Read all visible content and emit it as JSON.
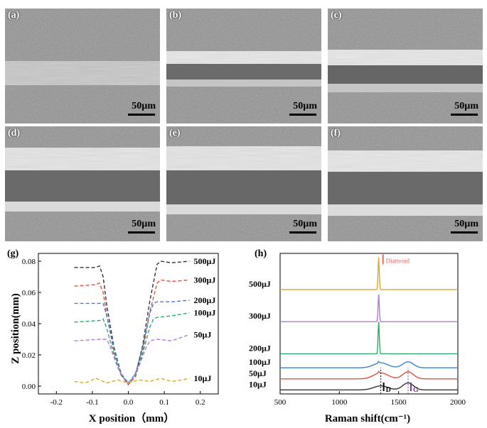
{
  "sem_panels": [
    {
      "label": "(a)",
      "scale": "50µm"
    },
    {
      "label": "(b)",
      "scale": "50µm"
    },
    {
      "label": "(c)",
      "scale": "50µm"
    },
    {
      "label": "(d)",
      "scale": "50µm"
    },
    {
      "label": "(e)",
      "scale": "50µm"
    },
    {
      "label": "(f)",
      "scale": "50µm"
    }
  ],
  "chart_data": [
    {
      "panel_label": "(g)",
      "type": "line",
      "xlabel": "X position（mm）",
      "ylabel": "Z position(mm)",
      "xlim": [
        -0.25,
        0.25
      ],
      "ylim": [
        -0.005,
        0.085
      ],
      "xticks": [
        "-0.2",
        "-0.1",
        "0.0",
        "0.1",
        "0.2"
      ],
      "yticks": [
        "0.00",
        "0.02",
        "0.04",
        "0.06",
        "0.08"
      ],
      "line_style": "dashed",
      "grid": false,
      "series": [
        {
          "name": "500μJ",
          "color": "#333333",
          "x": [
            -0.15,
            -0.09,
            -0.08,
            -0.07,
            -0.06,
            -0.04,
            -0.02,
            0.0,
            0.02,
            0.04,
            0.06,
            0.08,
            0.09,
            0.12,
            0.17
          ],
          "y": [
            0.076,
            0.076,
            0.077,
            0.07,
            0.052,
            0.025,
            0.008,
            0.001,
            0.007,
            0.026,
            0.055,
            0.078,
            0.08,
            0.079,
            0.08
          ]
        },
        {
          "name": "300μJ",
          "color": "#e0503e",
          "x": [
            -0.15,
            -0.09,
            -0.08,
            -0.07,
            -0.06,
            -0.04,
            -0.02,
            0.0,
            0.02,
            0.04,
            0.06,
            0.08,
            0.09,
            0.12,
            0.17
          ],
          "y": [
            0.064,
            0.065,
            0.066,
            0.06,
            0.046,
            0.022,
            0.007,
            0.001,
            0.006,
            0.022,
            0.048,
            0.066,
            0.068,
            0.067,
            0.068
          ]
        },
        {
          "name": "200μJ",
          "color": "#3a7fd5",
          "x": [
            -0.15,
            -0.08,
            -0.07,
            -0.06,
            -0.04,
            -0.02,
            0.0,
            0.02,
            0.04,
            0.06,
            0.07,
            0.08,
            0.12,
            0.17
          ],
          "y": [
            0.053,
            0.053,
            0.053,
            0.045,
            0.024,
            0.008,
            0.002,
            0.008,
            0.025,
            0.047,
            0.053,
            0.054,
            0.054,
            0.055
          ]
        },
        {
          "name": "100μJ",
          "color": "#2eaa6c",
          "x": [
            -0.15,
            -0.08,
            -0.07,
            -0.06,
            -0.04,
            -0.02,
            0.0,
            0.02,
            0.04,
            0.06,
            0.07,
            0.08,
            0.12,
            0.17
          ],
          "y": [
            0.041,
            0.042,
            0.043,
            0.037,
            0.02,
            0.007,
            0.002,
            0.007,
            0.021,
            0.038,
            0.043,
            0.044,
            0.045,
            0.047
          ]
        },
        {
          "name": "50μJ",
          "color": "#b07ad8",
          "x": [
            -0.15,
            -0.08,
            -0.06,
            -0.05,
            -0.03,
            -0.01,
            0.0,
            0.01,
            0.03,
            0.05,
            0.06,
            0.08,
            0.12,
            0.17
          ],
          "y": [
            0.029,
            0.03,
            0.03,
            0.025,
            0.012,
            0.004,
            0.002,
            0.004,
            0.013,
            0.025,
            0.029,
            0.03,
            0.029,
            0.033
          ]
        },
        {
          "name": "10μJ",
          "color": "#d9a825",
          "x": [
            -0.15,
            -0.12,
            -0.09,
            -0.06,
            -0.03,
            0.0,
            0.03,
            0.06,
            0.09,
            0.12,
            0.15,
            0.17
          ],
          "y": [
            0.003,
            0.002,
            0.005,
            0.002,
            0.004,
            0.002,
            0.004,
            0.003,
            0.005,
            0.003,
            0.004,
            0.005
          ]
        }
      ]
    },
    {
      "panel_label": "(h)",
      "type": "line",
      "xlabel": "Raman shift(cm⁻¹)",
      "ylabel": "",
      "xlim": [
        500,
        2000
      ],
      "xticks": [
        "500",
        "1000",
        "1500",
        "2000"
      ],
      "grid": false,
      "annotations": {
        "diamond": "Diamond",
        "d": "D",
        "g": "G"
      },
      "peak_positions": {
        "diamond": 1332,
        "d": 1350,
        "g": 1580
      },
      "series": [
        {
          "name": "500μJ",
          "color": "#d9a825",
          "offset": 5.2,
          "diamond_peak": 1.6,
          "d_peak": 0.0,
          "g_peak": 0.0
        },
        {
          "name": "300μJ",
          "color": "#b07ad8",
          "offset": 3.6,
          "diamond_peak": 1.35,
          "d_peak": 0.0,
          "g_peak": 0.0
        },
        {
          "name": "200μJ",
          "color": "#2eaa6c",
          "offset": 2.0,
          "diamond_peak": 1.6,
          "d_peak": 0.0,
          "g_peak": 0.0
        },
        {
          "name": "100μJ",
          "color": "#3a7fd5",
          "offset": 1.3,
          "diamond_peak": 0.08,
          "d_peak": 0.25,
          "g_peak": 0.3
        },
        {
          "name": "50μJ",
          "color": "#e0503e",
          "offset": 0.75,
          "diamond_peak": 0.08,
          "d_peak": 0.3,
          "g_peak": 0.35
        },
        {
          "name": "10μJ",
          "color": "#333333",
          "offset": 0.2,
          "diamond_peak": 0.0,
          "d_peak": 0.2,
          "g_peak": 0.35
        }
      ]
    }
  ]
}
